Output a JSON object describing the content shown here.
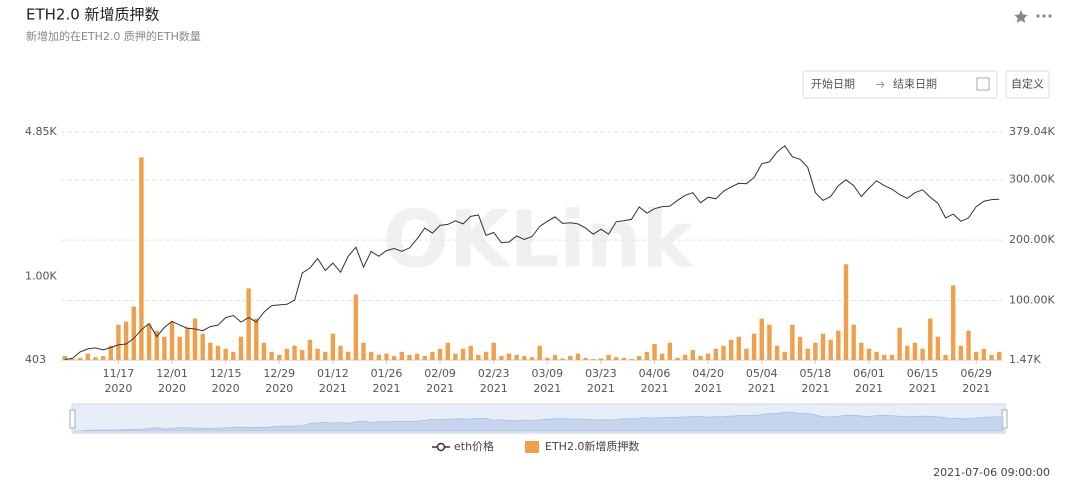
{
  "title": "ETH2.0 新增质押数",
  "subtitle": "新增加的在ETH2.0 质押的ETH数量",
  "date_picker": {
    "start": "开始日期",
    "end": "结束日期"
  },
  "custom_button": "自定义",
  "watermark": "OKLink",
  "timestamp": "2021-07-06 09:00:00",
  "chart_data": {
    "type": "combo",
    "categories": [
      null,
      null,
      null,
      null,
      null,
      null,
      null,
      "11/17",
      null,
      null,
      null,
      null,
      null,
      null,
      "12/01",
      null,
      null,
      null,
      null,
      null,
      null,
      "12/15",
      null,
      null,
      null,
      null,
      null,
      null,
      "12/29",
      null,
      null,
      null,
      null,
      null,
      null,
      "01/12",
      null,
      null,
      null,
      null,
      null,
      null,
      "01/26",
      null,
      null,
      null,
      null,
      null,
      null,
      "02/09",
      null,
      null,
      null,
      null,
      null,
      null,
      "02/23",
      null,
      null,
      null,
      null,
      null,
      null,
      "03/09",
      null,
      null,
      null,
      null,
      null,
      null,
      "03/23",
      null,
      null,
      null,
      null,
      null,
      null,
      "04/06",
      null,
      null,
      null,
      null,
      null,
      null,
      "04/20",
      null,
      null,
      null,
      null,
      null,
      null,
      "05/04",
      null,
      null,
      null,
      null,
      null,
      null,
      "05/18",
      null,
      null,
      null,
      null,
      null,
      null,
      "06/01",
      null,
      null,
      null,
      null,
      null,
      null,
      "06/15",
      null,
      null,
      null,
      null,
      null,
      null,
      "06/29",
      null,
      null,
      null
    ],
    "category_years": [
      null,
      null,
      null,
      null,
      null,
      null,
      null,
      "2020",
      null,
      null,
      null,
      null,
      null,
      null,
      "2020",
      null,
      null,
      null,
      null,
      null,
      null,
      "2020",
      null,
      null,
      null,
      null,
      null,
      null,
      "2020",
      null,
      null,
      null,
      null,
      null,
      null,
      "2021",
      null,
      null,
      null,
      null,
      null,
      null,
      "2021",
      null,
      null,
      null,
      null,
      null,
      null,
      "2021",
      null,
      null,
      null,
      null,
      null,
      null,
      "2021",
      null,
      null,
      null,
      null,
      null,
      null,
      "2021",
      null,
      null,
      null,
      null,
      null,
      null,
      "2021",
      null,
      null,
      null,
      null,
      null,
      null,
      "2021",
      null,
      null,
      null,
      null,
      null,
      null,
      "2021",
      null,
      null,
      null,
      null,
      null,
      null,
      "2021",
      null,
      null,
      null,
      null,
      null,
      null,
      "2021",
      null,
      null,
      null,
      null,
      null,
      null,
      "2021",
      null,
      null,
      null,
      null,
      null,
      null,
      "2021",
      null,
      null,
      null,
      null,
      null,
      null,
      "2021",
      null,
      null,
      null
    ],
    "log_y": true,
    "ylim": [
      403,
      4850
    ],
    "yticks": [
      403,
      {
        "value": 1000,
        "label": "1.00K"
      },
      {
        "value": 4850,
        "label": "4.85K"
      }
    ],
    "y2lim": [
      1470,
      379040
    ],
    "y2ticks": [
      {
        "value": 1470,
        "label": "1.47K"
      },
      {
        "value": 100000,
        "label": "100.00K"
      },
      {
        "value": 200000,
        "label": "200.00K"
      },
      {
        "value": 300000,
        "label": "300.00K"
      },
      {
        "value": 379040,
        "label": "379.04K"
      }
    ],
    "grid": true,
    "legend": "bottom",
    "series": [
      {
        "name": "eth价格",
        "type": "line",
        "color": "#333333",
        "values": [
          405,
          410,
          440,
          455,
          460,
          450,
          462,
          475,
          480,
          510,
          560,
          600,
          520,
          575,
          615,
          590,
          570,
          565,
          555,
          580,
          590,
          640,
          655,
          610,
          640,
          610,
          680,
          730,
          735,
          740,
          775,
          1040,
          1100,
          1220,
          1070,
          1160,
          1050,
          1250,
          1380,
          1110,
          1320,
          1250,
          1330,
          1360,
          1320,
          1370,
          1510,
          1700,
          1610,
          1750,
          1770,
          1840,
          1780,
          1930,
          1960,
          1570,
          1620,
          1450,
          1460,
          1560,
          1500,
          1550,
          1730,
          1830,
          1920,
          1790,
          1800,
          1780,
          1700,
          1590,
          1680,
          1590,
          1820,
          1840,
          1870,
          2140,
          2000,
          2100,
          2150,
          2160,
          2300,
          2430,
          2500,
          2240,
          2380,
          2340,
          2540,
          2660,
          2770,
          2760,
          2950,
          3430,
          3500,
          3900,
          4170,
          3700,
          3600,
          3300,
          2500,
          2300,
          2400,
          2700,
          2880,
          2700,
          2400,
          2630,
          2850,
          2700,
          2600,
          2450,
          2350,
          2500,
          2580,
          2380,
          2230,
          1900,
          1980,
          1830,
          1900,
          2150,
          2280,
          2320,
          2330
        ]
      },
      {
        "name": "ETH2.0新增质押数",
        "type": "bar",
        "axis": "y2",
        "color": "#f0a04b",
        "values": [
          8000,
          3000,
          5000,
          12000,
          6000,
          8000,
          25000,
          60000,
          65000,
          90000,
          337000,
          60000,
          50000,
          40000,
          65000,
          40000,
          55000,
          70000,
          45000,
          30000,
          25000,
          20000,
          15000,
          40000,
          120000,
          70000,
          30000,
          15000,
          10000,
          20000,
          25000,
          18000,
          35000,
          20000,
          15000,
          45000,
          25000,
          15000,
          110000,
          30000,
          15000,
          10000,
          12000,
          8000,
          15000,
          10000,
          12000,
          8000,
          15000,
          20000,
          30000,
          12000,
          20000,
          25000,
          10000,
          15000,
          30000,
          8000,
          12000,
          10000,
          8000,
          6000,
          25000,
          5000,
          10000,
          4000,
          8000,
          12000,
          5000,
          3000,
          4000,
          10000,
          6000,
          5000,
          3000,
          8000,
          15000,
          28000,
          12000,
          30000,
          5000,
          10000,
          18000,
          8000,
          12000,
          20000,
          25000,
          35000,
          40000,
          20000,
          45000,
          70000,
          60000,
          25000,
          15000,
          60000,
          40000,
          20000,
          30000,
          45000,
          35000,
          50000,
          160000,
          60000,
          30000,
          20000,
          15000,
          10000,
          10000,
          55000,
          25000,
          30000,
          20000,
          70000,
          40000,
          10000,
          125000,
          25000,
          50000,
          15000,
          20000,
          10000,
          15000
        ]
      }
    ]
  }
}
